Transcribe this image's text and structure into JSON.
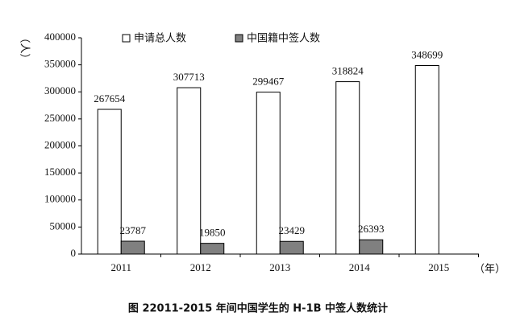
{
  "chart_data": {
    "type": "bar",
    "title": "图 22011-2015 年间中国学生的 H-1B 中签人数统计",
    "y_label": "（人）",
    "x_label": "（年）",
    "categories": [
      "2011",
      "2012",
      "2013",
      "2014",
      "2015"
    ],
    "series": [
      {
        "name": "申请总人数",
        "color": "#ffffff",
        "values": [
          267654,
          307713,
          299467,
          318824,
          348699
        ]
      },
      {
        "name": "中国籍中签人数",
        "color": "#808080",
        "values": [
          23787,
          19850,
          23429,
          26393,
          null
        ]
      }
    ],
    "ylim": [
      0,
      400000
    ],
    "yticks": [
      0,
      50000,
      100000,
      150000,
      200000,
      250000,
      300000,
      350000,
      400000
    ],
    "legend": "top"
  }
}
